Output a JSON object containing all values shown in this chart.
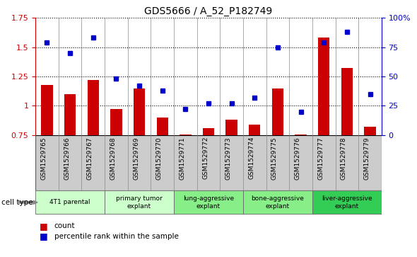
{
  "title": "GDS5666 / A_52_P182749",
  "samples": [
    "GSM1529765",
    "GSM1529766",
    "GSM1529767",
    "GSM1529768",
    "GSM1529769",
    "GSM1529770",
    "GSM1529771",
    "GSM1529772",
    "GSM1529773",
    "GSM1529774",
    "GSM1529775",
    "GSM1529776",
    "GSM1529777",
    "GSM1529778",
    "GSM1529779"
  ],
  "bar_values": [
    1.18,
    1.1,
    1.22,
    0.97,
    1.15,
    0.9,
    0.755,
    0.81,
    0.88,
    0.84,
    1.15,
    0.755,
    1.58,
    1.32,
    0.82
  ],
  "dot_values": [
    79,
    70,
    83,
    48,
    42,
    38,
    22,
    27,
    27,
    32,
    75,
    20,
    79,
    88,
    35
  ],
  "bar_color": "#cc0000",
  "dot_color": "#0000cc",
  "ylim_left": [
    0.75,
    1.75
  ],
  "ylim_right": [
    0,
    100
  ],
  "yticks_left": [
    0.75,
    1.0,
    1.25,
    1.5,
    1.75
  ],
  "yticks_right": [
    0,
    25,
    50,
    75,
    100
  ],
  "cell_groups": [
    {
      "label": "4T1 parental",
      "start": 0,
      "end": 3,
      "color": "#ccffcc"
    },
    {
      "label": "primary tumor\nexplant",
      "start": 3,
      "end": 6,
      "color": "#ccffcc"
    },
    {
      "label": "lung-aggressive\nexplant",
      "start": 6,
      "end": 9,
      "color": "#88ee88"
    },
    {
      "label": "bone-aggressive\nexplant",
      "start": 9,
      "end": 12,
      "color": "#88ee88"
    },
    {
      "label": "liver-aggressive\nexplant",
      "start": 12,
      "end": 15,
      "color": "#33cc55"
    }
  ],
  "cell_type_label": "cell type",
  "legend_bar_label": "count",
  "legend_dot_label": "percentile rank within the sample",
  "tick_color_left": "#cc0000",
  "tick_color_right": "#0000cc",
  "xtick_bg": "#cccccc",
  "hline_color": "black",
  "vline_color": "#888888",
  "bar_width": 0.5
}
